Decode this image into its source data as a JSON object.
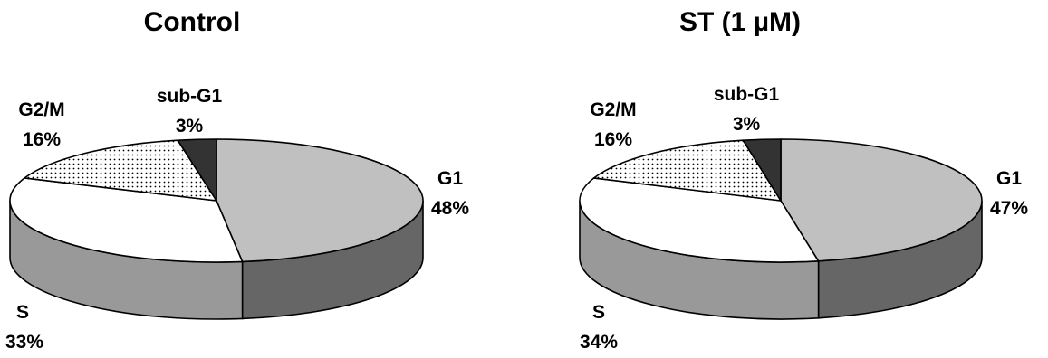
{
  "chart_data": [
    {
      "type": "pie",
      "title": "Control",
      "slices": [
        {
          "name": "G1",
          "value": 48,
          "label": "48%"
        },
        {
          "name": "S",
          "value": 33,
          "label": "33%"
        },
        {
          "name": "G2/M",
          "value": 16,
          "label": "16%"
        },
        {
          "name": "sub-G1",
          "value": 3,
          "label": "3%"
        }
      ],
      "colors": {
        "G1": "#c0c0c0",
        "S": "#ffffff",
        "G2/M": "dotted",
        "sub-G1": "#333333"
      },
      "style": "3d"
    },
    {
      "type": "pie",
      "title": "ST (1 µM)",
      "slices": [
        {
          "name": "G1",
          "value": 47,
          "label": "47%"
        },
        {
          "name": "S",
          "value": 34,
          "label": "34%"
        },
        {
          "name": "G2/M",
          "value": 16,
          "label": "16%"
        },
        {
          "name": "sub-G1",
          "value": 3,
          "label": "3%"
        }
      ],
      "colors": {
        "G1": "#c0c0c0",
        "S": "#ffffff",
        "G2/M": "dotted",
        "sub-G1": "#333333"
      },
      "style": "3d"
    }
  ]
}
